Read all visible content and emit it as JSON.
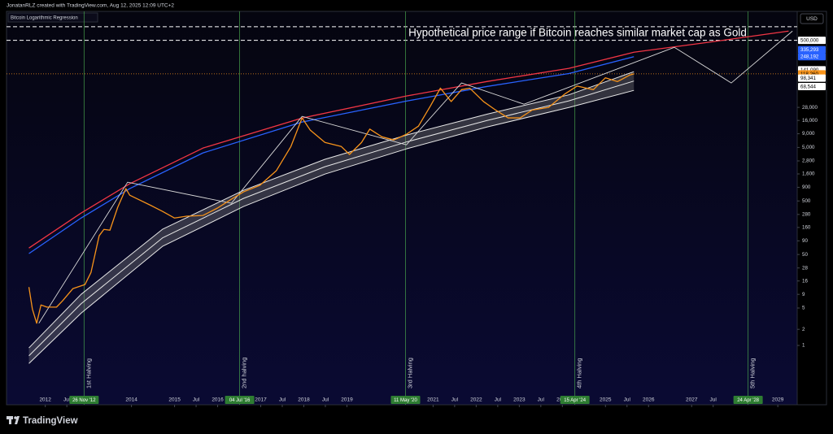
{
  "header": "JonatanRLZ created with TradingView.com, Aug 12, 2025 12:09 UTC+2",
  "footer": "TradingView",
  "chart_data": {
    "type": "line",
    "legend_title": "Bitcoin Logarithmic Regression",
    "currency": "USD",
    "annotation": "Hypothetical price range if Bitcoin reaches similar market cap as Gold",
    "log_scale": true,
    "xlim": [
      2011.1,
      2029.45
    ],
    "ylim": [
      0.078,
      1740000
    ],
    "xticks": [
      2012,
      {
        "value": 2012.5,
        "label": "Jul"
      },
      2014,
      2015,
      {
        "value": 2015.5,
        "label": "Jul"
      },
      2016,
      2017,
      {
        "value": 2017.5,
        "label": "Jul"
      },
      2018,
      {
        "value": 2018.5,
        "label": "Jul"
      },
      2019,
      2021,
      {
        "value": 2021.5,
        "label": "Jul"
      },
      2022,
      {
        "value": 2022.5,
        "label": "Jul"
      },
      2023,
      {
        "value": 2023.5,
        "label": "Jul"
      },
      2024,
      2025,
      {
        "value": 2025.5,
        "label": "Jul"
      },
      2026,
      2027,
      {
        "value": 2027.5,
        "label": "Jul"
      },
      2029
    ],
    "yticks": [
      1,
      2,
      5,
      9,
      16,
      28,
      50,
      90,
      160,
      280,
      500,
      900,
      {
        "value": 1600,
        "label": "1,600"
      },
      {
        "value": 2800,
        "label": "2,800"
      },
      {
        "value": 5000,
        "label": "5,000"
      },
      {
        "value": 9000,
        "label": "9,000"
      },
      {
        "value": 16000,
        "label": "16,000"
      },
      {
        "value": 28000,
        "label": "28,000"
      }
    ],
    "price_labels": [
      {
        "value": 500000,
        "label": "500,000",
        "color": "#ffffff",
        "text_color": "#000000"
      },
      {
        "value": 335293,
        "label": "335,293",
        "color": "#2962ff",
        "text_color": "#ffffff"
      },
      {
        "value": 248192,
        "label": "248,192",
        "color": "#2962ff",
        "text_color": "#ffffff"
      },
      {
        "value": 141090,
        "label": "141,090",
        "color": "#ffffff",
        "text_color": "#000000"
      },
      {
        "value": 118260,
        "label": "118,260",
        "color": "#f7931a",
        "text_color": "#000000"
      },
      {
        "value": 98341,
        "label": "98,341",
        "color": "#ffffff",
        "text_color": "#000000"
      },
      {
        "value": 68544,
        "label": "68,544",
        "color": "#ffffff",
        "text_color": "#000000"
      }
    ],
    "current_price_color": "#f7931a",
    "range_lines": [
      500000,
      900000
    ],
    "band_fill": "#8a8a8a",
    "halvings": [
      {
        "x": 2012.9,
        "date_label": "26 Nov '12",
        "label": "1st Halving"
      },
      {
        "x": 2016.51,
        "date_label": "04 Jul '16",
        "label": "2nd halving"
      },
      {
        "x": 2020.36,
        "date_label": "11 May '20",
        "label": "3rd Halving"
      },
      {
        "x": 2024.29,
        "date_label": "15 Apr '24",
        "label": "4th Halving"
      },
      {
        "x": 2028.31,
        "date_label": "24 Apr '28",
        "label": "5th Halving"
      }
    ],
    "series": [
      {
        "color": "#f7931a",
        "width": 1.3,
        "x": [
          2011.62,
          2011.7,
          2011.8,
          2011.9,
          2012.04,
          2012.26,
          2012.4,
          2012.64,
          2012.92,
          2013.06,
          2013.25,
          2013.36,
          2013.5,
          2013.68,
          2013.87,
          2013.96,
          2014.15,
          2014.43,
          2014.72,
          2015,
          2015.28,
          2015.66,
          2016,
          2016.32,
          2016.6,
          2016.98,
          2017.36,
          2017.7,
          2017.96,
          2018.15,
          2018.49,
          2018.87,
          2019.06,
          2019.34,
          2019.53,
          2019.81,
          2020.09,
          2020.38,
          2020.66,
          2020.94,
          2021.17,
          2021.42,
          2021.66,
          2021.85,
          2022.17,
          2022.45,
          2022.74,
          2023.02,
          2023.3,
          2023.68,
          2024.06,
          2024.34,
          2024.72,
          2025,
          2025.28,
          2025.57,
          2025.66
        ],
        "values": [
          12.3,
          4.8,
          2.6,
          5.7,
          5.2,
          5.2,
          6.8,
          11.5,
          13.7,
          23,
          112,
          147,
          142,
          380,
          850,
          640,
          540,
          420,
          320,
          240,
          260,
          268,
          370,
          540,
          740,
          980,
          1830,
          5200,
          17800,
          10500,
          6200,
          5200,
          3700,
          6200,
          11000,
          7900,
          6900,
          8800,
          12500,
          30000,
          64000,
          36000,
          60000,
          64000,
          36000,
          25000,
          17800,
          17800,
          25000,
          28000,
          50000,
          70000,
          60000,
          100000,
          85000,
          113000,
          118260
        ]
      },
      {
        "color": "#e8e8e8",
        "width": 1,
        "x": [
          2011.62,
          2012.83,
          2014.72,
          2016.6,
          2018.49,
          2020.38,
          2022.26,
          2024.15,
          2025.66
        ],
        "values": [
          0.9,
          9.0,
          148,
          790,
          3000,
          8500,
          21000,
          48000,
          130000
        ]
      },
      {
        "color": "#e8e8e8",
        "width": 1,
        "x": [
          2011.62,
          2012.83,
          2014.72,
          2016.6,
          2018.49,
          2020.38,
          2022.26,
          2024.15,
          2025.66
        ],
        "values": [
          0.64,
          6.0,
          102,
          558,
          2180,
          6320,
          16000,
          37000,
          87000
        ]
      },
      {
        "color": "#e8e8e8",
        "width": 1,
        "x": [
          2011.62,
          2012.83,
          2014.72,
          2016.6,
          2018.49,
          2020.38,
          2022.26,
          2024.15,
          2025.66
        ],
        "values": [
          0.46,
          4.0,
          71,
          394,
          1590,
          4700,
          12100,
          27900,
          58200
        ]
      },
      {
        "color": "#f23645",
        "width": 1.3,
        "x": [
          2011.62,
          2012.83,
          2013.96,
          2015.66,
          2017.96,
          2020.38,
          2022.26,
          2024.15,
          2025.66,
          2027.36,
          2029.25
        ],
        "values": [
          66,
          297,
          1050,
          4870,
          17700,
          45600,
          85500,
          150000,
          300000,
          457000,
          745000
        ]
      },
      {
        "color": "#2962ff",
        "width": 1.3,
        "x": [
          2011.62,
          2012.83,
          2013.96,
          2015.66,
          2017.96,
          2020.38,
          2022.26,
          2024.15,
          2025.66
        ],
        "values": [
          52,
          240,
          850,
          3950,
          14900,
          36700,
          69000,
          120000,
          248000
        ]
      },
      {
        "color": "#d8d8d8",
        "width": 0.9,
        "x": [
          2011.85,
          2013.91,
          2016.32,
          2017.96,
          2020.38,
          2021.66,
          2023.11,
          2026.6,
          2027.92,
          2029.34
        ],
        "values": [
          2.6,
          1120,
          453,
          19000,
          5600,
          80000,
          32100,
          371000,
          80000,
          746000
        ]
      }
    ],
    "band_series": [
      1,
      3
    ]
  }
}
